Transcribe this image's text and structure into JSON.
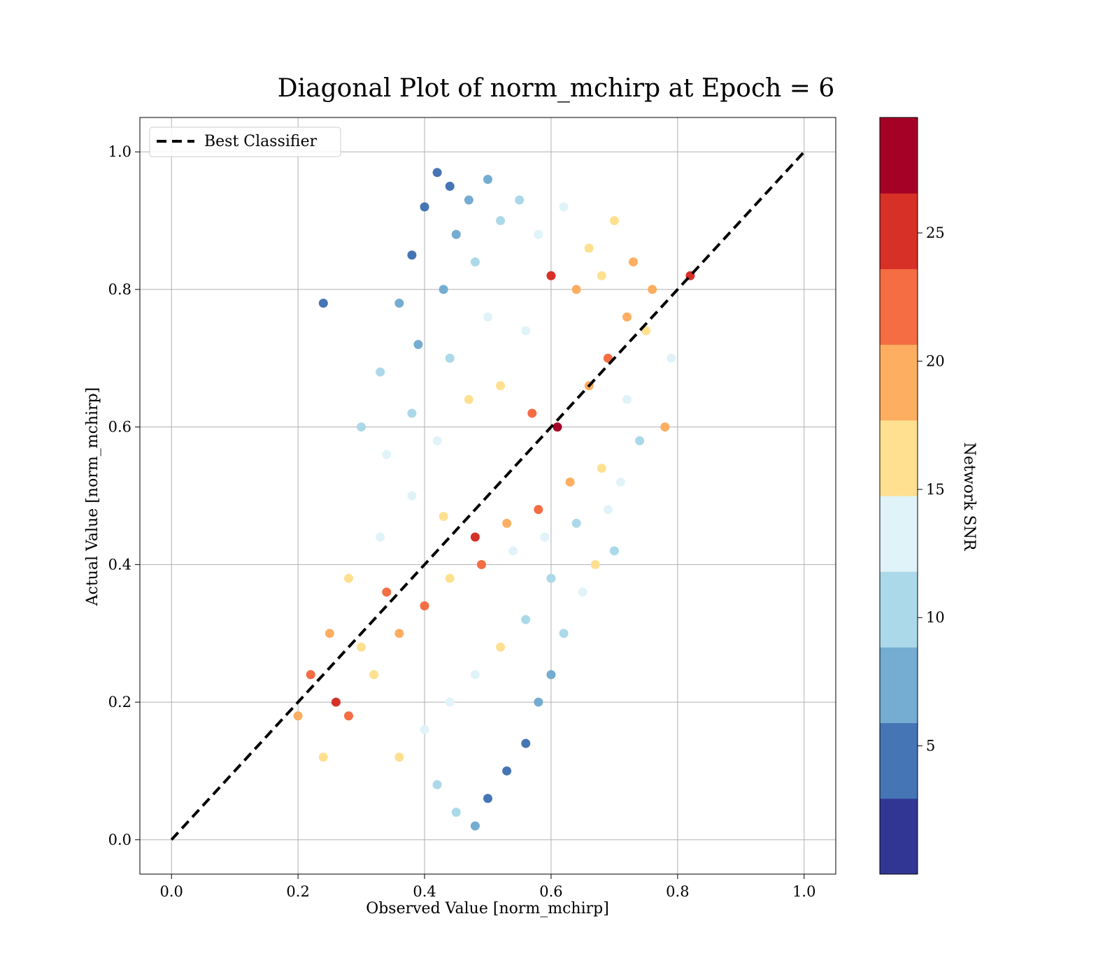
{
  "chart_data": {
    "type": "scatter",
    "title": "Diagonal Plot of norm_mchirp at Epoch = 6",
    "xlabel": "Observed Value [norm_mchirp]",
    "ylabel": "Actual Value [norm_mchirp]",
    "xlim": [
      -0.05,
      1.05
    ],
    "ylim": [
      -0.05,
      1.05
    ],
    "xticks": [
      0.0,
      0.2,
      0.4,
      0.6,
      0.8,
      1.0
    ],
    "yticks": [
      0.0,
      0.2,
      0.4,
      0.6,
      0.8,
      1.0
    ],
    "x_tick_labels": [
      "0.0",
      "0.2",
      "0.4",
      "0.6",
      "0.8",
      "1.0"
    ],
    "y_tick_labels": [
      "0.0",
      "0.2",
      "0.4",
      "0.6",
      "0.8",
      "1.0"
    ],
    "grid": true,
    "legend": {
      "placement": "top-left",
      "entries": [
        "Best Classifier"
      ]
    },
    "reference_line": {
      "name": "Best Classifier",
      "style": "dashed",
      "color": "#000000",
      "x": [
        0.0,
        1.0
      ],
      "y": [
        0.0,
        1.0
      ]
    },
    "colorbar": {
      "label": "Network SNR",
      "range": [
        0,
        29.5
      ],
      "ticks": [
        5,
        10,
        15,
        20,
        25
      ],
      "tick_labels": [
        "5",
        "10",
        "15",
        "20",
        "25"
      ],
      "colormap": "RdYlBu_r",
      "colors": [
        "#313695",
        "#4575b4",
        "#74add1",
        "#abd9e9",
        "#e0f3f8",
        "#fee090",
        "#fdae61",
        "#f46d43",
        "#d73027",
        "#a50026"
      ]
    },
    "series": [
      {
        "value_role": "x=observed, y=actual, c=network_snr",
        "points": [
          [
            0.42,
            0.97,
            3
          ],
          [
            0.44,
            0.95,
            5
          ],
          [
            0.47,
            0.93,
            6
          ],
          [
            0.4,
            0.92,
            4
          ],
          [
            0.5,
            0.96,
            7
          ],
          [
            0.45,
            0.88,
            7
          ],
          [
            0.52,
            0.9,
            9
          ],
          [
            0.38,
            0.85,
            5
          ],
          [
            0.43,
            0.8,
            8
          ],
          [
            0.48,
            0.84,
            9
          ],
          [
            0.55,
            0.93,
            11
          ],
          [
            0.58,
            0.88,
            12
          ],
          [
            0.62,
            0.92,
            13
          ],
          [
            0.66,
            0.86,
            15
          ],
          [
            0.7,
            0.9,
            16
          ],
          [
            0.73,
            0.84,
            18
          ],
          [
            0.76,
            0.8,
            20
          ],
          [
            0.64,
            0.8,
            19
          ],
          [
            0.6,
            0.82,
            24
          ],
          [
            0.56,
            0.74,
            14
          ],
          [
            0.5,
            0.76,
            12
          ],
          [
            0.44,
            0.7,
            10
          ],
          [
            0.39,
            0.72,
            7
          ],
          [
            0.36,
            0.78,
            6
          ],
          [
            0.33,
            0.68,
            9
          ],
          [
            0.3,
            0.6,
            11
          ],
          [
            0.34,
            0.56,
            13
          ],
          [
            0.38,
            0.62,
            10
          ],
          [
            0.42,
            0.58,
            14
          ],
          [
            0.47,
            0.64,
            16
          ],
          [
            0.52,
            0.66,
            17
          ],
          [
            0.57,
            0.62,
            21
          ],
          [
            0.61,
            0.6,
            27
          ],
          [
            0.66,
            0.66,
            19
          ],
          [
            0.69,
            0.7,
            22
          ],
          [
            0.72,
            0.64,
            12
          ],
          [
            0.74,
            0.58,
            10
          ],
          [
            0.68,
            0.54,
            16
          ],
          [
            0.63,
            0.52,
            20
          ],
          [
            0.58,
            0.48,
            23
          ],
          [
            0.53,
            0.46,
            19
          ],
          [
            0.48,
            0.44,
            25
          ],
          [
            0.43,
            0.47,
            15
          ],
          [
            0.38,
            0.5,
            12
          ],
          [
            0.33,
            0.44,
            14
          ],
          [
            0.28,
            0.38,
            17
          ],
          [
            0.25,
            0.3,
            20
          ],
          [
            0.22,
            0.24,
            22
          ],
          [
            0.2,
            0.18,
            18
          ],
          [
            0.24,
            0.12,
            16
          ],
          [
            0.28,
            0.18,
            23
          ],
          [
            0.32,
            0.24,
            15
          ],
          [
            0.36,
            0.3,
            19
          ],
          [
            0.4,
            0.34,
            22
          ],
          [
            0.44,
            0.38,
            17
          ],
          [
            0.49,
            0.4,
            21
          ],
          [
            0.54,
            0.42,
            14
          ],
          [
            0.59,
            0.44,
            12
          ],
          [
            0.64,
            0.46,
            11
          ],
          [
            0.69,
            0.48,
            13
          ],
          [
            0.6,
            0.38,
            9
          ],
          [
            0.56,
            0.32,
            10
          ],
          [
            0.52,
            0.28,
            16
          ],
          [
            0.48,
            0.24,
            13
          ],
          [
            0.44,
            0.2,
            12
          ],
          [
            0.4,
            0.16,
            14
          ],
          [
            0.36,
            0.12,
            16
          ],
          [
            0.42,
            0.08,
            11
          ],
          [
            0.45,
            0.04,
            9
          ],
          [
            0.48,
            0.02,
            7
          ],
          [
            0.5,
            0.06,
            5
          ],
          [
            0.53,
            0.1,
            4
          ],
          [
            0.56,
            0.14,
            3
          ],
          [
            0.58,
            0.2,
            6
          ],
          [
            0.6,
            0.24,
            8
          ],
          [
            0.62,
            0.3,
            10
          ],
          [
            0.65,
            0.36,
            12
          ],
          [
            0.67,
            0.4,
            15
          ],
          [
            0.7,
            0.42,
            11
          ],
          [
            0.71,
            0.52,
            14
          ],
          [
            0.72,
            0.76,
            18
          ],
          [
            0.68,
            0.82,
            15
          ],
          [
            0.75,
            0.74,
            16
          ],
          [
            0.79,
            0.7,
            14
          ],
          [
            0.82,
            0.82,
            26
          ],
          [
            0.78,
            0.6,
            20
          ],
          [
            0.3,
            0.28,
            17
          ],
          [
            0.26,
            0.2,
            24
          ],
          [
            0.34,
            0.36,
            21
          ],
          [
            0.24,
            0.78,
            5
          ]
        ]
      }
    ]
  }
}
